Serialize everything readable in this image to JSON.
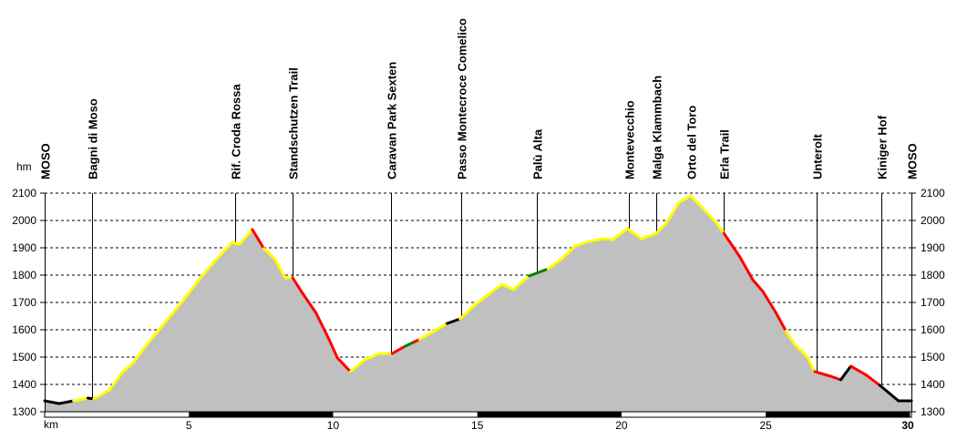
{
  "chart_data": {
    "type": "area",
    "title": "",
    "xlabel": "km",
    "ylabel": "hm",
    "xlim": [
      0,
      30.05
    ],
    "ylim": [
      1300,
      2100
    ],
    "x_ticks": [
      5,
      10,
      15,
      20,
      25,
      30
    ],
    "x_tick_labels": [
      "5",
      "10",
      "15",
      "20",
      "25",
      "30"
    ],
    "y_ticks": [
      1300,
      1400,
      1500,
      1600,
      1700,
      1800,
      1900,
      2000,
      2100
    ],
    "y_tick_labels": [
      "1300",
      "1400",
      "1500",
      "1600",
      "1700",
      "1800",
      "1900",
      "2000",
      "2100"
    ],
    "grid": "horizontal-dashed",
    "colors": {
      "fill": "#c0c0c0",
      "black": "#000000",
      "yellow": "#ffff00",
      "red": "#ff0000",
      "green": "#008000"
    },
    "profile": [
      [
        0,
        1340,
        "black"
      ],
      [
        0.5,
        1330,
        "black"
      ],
      [
        1.0,
        1340,
        "yellow"
      ],
      [
        1.5,
        1350,
        "black"
      ],
      [
        1.7,
        1347,
        "yellow"
      ],
      [
        2.25,
        1380,
        "yellow"
      ],
      [
        2.66,
        1440,
        "yellow"
      ],
      [
        3.1,
        1483,
        "yellow"
      ],
      [
        3.5,
        1540,
        "yellow"
      ],
      [
        4.15,
        1623,
        "yellow"
      ],
      [
        4.8,
        1707,
        "yellow"
      ],
      [
        5.4,
        1790,
        "yellow"
      ],
      [
        6.0,
        1863,
        "yellow"
      ],
      [
        6.5,
        1920,
        "yellow"
      ],
      [
        6.75,
        1913,
        "yellow"
      ],
      [
        7.2,
        1967,
        "red"
      ],
      [
        7.6,
        1897,
        "yellow"
      ],
      [
        7.95,
        1863,
        "yellow"
      ],
      [
        8.35,
        1790,
        "yellow"
      ],
      [
        8.6,
        1790,
        "red"
      ],
      [
        8.9,
        1740,
        "red"
      ],
      [
        9.4,
        1663,
        "red"
      ],
      [
        9.85,
        1567,
        "red"
      ],
      [
        10.15,
        1497,
        "red"
      ],
      [
        10.6,
        1447,
        "yellow"
      ],
      [
        11.1,
        1490,
        "yellow"
      ],
      [
        11.6,
        1513,
        "yellow"
      ],
      [
        12.05,
        1513,
        "red"
      ],
      [
        12.5,
        1540,
        "green"
      ],
      [
        12.8,
        1555,
        "red"
      ],
      [
        13.0,
        1565,
        "yellow"
      ],
      [
        13.3,
        1583,
        "yellow"
      ],
      [
        13.95,
        1623,
        "black"
      ],
      [
        14.4,
        1640,
        "yellow"
      ],
      [
        14.9,
        1690,
        "yellow"
      ],
      [
        15.4,
        1730,
        "yellow"
      ],
      [
        15.85,
        1767,
        "yellow"
      ],
      [
        16.25,
        1747,
        "yellow"
      ],
      [
        16.8,
        1797,
        "green"
      ],
      [
        17.45,
        1823,
        "yellow"
      ],
      [
        17.9,
        1857,
        "yellow"
      ],
      [
        18.4,
        1907,
        "yellow"
      ],
      [
        18.85,
        1923,
        "yellow"
      ],
      [
        19.35,
        1933,
        "yellow"
      ],
      [
        19.7,
        1930,
        "yellow"
      ],
      [
        20.2,
        1970,
        "yellow"
      ],
      [
        20.7,
        1933,
        "yellow"
      ],
      [
        21.2,
        1953,
        "yellow"
      ],
      [
        21.55,
        1990,
        "yellow"
      ],
      [
        22.0,
        2067,
        "yellow"
      ],
      [
        22.4,
        2090,
        "yellow"
      ],
      [
        22.8,
        2047,
        "yellow"
      ],
      [
        23.3,
        1990,
        "yellow"
      ],
      [
        23.55,
        1953,
        "red"
      ],
      [
        24.1,
        1867,
        "red"
      ],
      [
        24.55,
        1783,
        "red"
      ],
      [
        24.9,
        1740,
        "red"
      ],
      [
        25.35,
        1663,
        "red"
      ],
      [
        25.7,
        1595,
        "yellow"
      ],
      [
        26.0,
        1547,
        "yellow"
      ],
      [
        26.45,
        1500,
        "yellow"
      ],
      [
        26.7,
        1447,
        "red"
      ],
      [
        27.25,
        1430,
        "red"
      ],
      [
        27.6,
        1417,
        "black"
      ],
      [
        27.95,
        1467,
        "red"
      ],
      [
        28.5,
        1433,
        "red"
      ],
      [
        28.95,
        1397,
        "black"
      ],
      [
        29.6,
        1340,
        "black"
      ],
      [
        30.05,
        1340,
        "black"
      ]
    ],
    "waypoints": [
      {
        "name": "MOSO",
        "km": 0
      },
      {
        "name": "Bagni di Moso",
        "km": 1.65
      },
      {
        "name": "Rif. Croda Rossa",
        "km": 6.6
      },
      {
        "name": "Standschutzen Trail",
        "km": 8.6
      },
      {
        "name": "Caravan Park Sexten",
        "km": 12.0
      },
      {
        "name": "Passo Montecroce Comelico",
        "km": 14.45
      },
      {
        "name": "Palù Alta",
        "km": 17.05
      },
      {
        "name": "Montevecchio",
        "km": 20.25
      },
      {
        "name": "Malga Klammbach",
        "km": 21.2
      },
      {
        "name": "Orto del Toro",
        "km": 22.4
      },
      {
        "name": "Erla Trail",
        "km": 23.55
      },
      {
        "name": "Unterolt",
        "km": 26.75
      },
      {
        "name": "Kiniger Hof",
        "km": 29.0
      },
      {
        "name": "MOSO",
        "km": 30.05
      }
    ]
  }
}
